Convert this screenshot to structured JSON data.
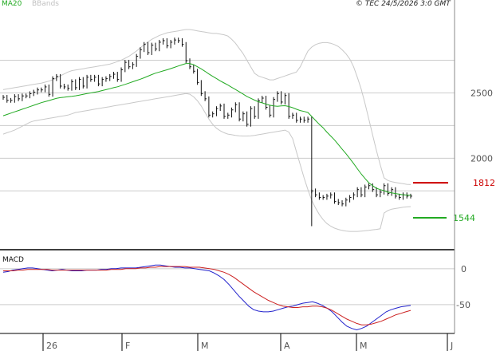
{
  "header": {
    "copyright": "© TEC 24/5/2026 3:0 GMT"
  },
  "legend": {
    "ma20": "MA20",
    "bbands": "BBands"
  },
  "macd_panel": {
    "title": "MACD"
  },
  "colors": {
    "ma20": "#22aa22",
    "bbands": "#c8c8c8",
    "price": "#111111",
    "resistance": "#cc0000",
    "support": "#22aa22",
    "macd": "#2222cc",
    "signal": "#cc2222",
    "grid": "#cccccc"
  },
  "chart_data": [
    {
      "type": "ohlc",
      "x_ticks": [
        "26",
        "F",
        "M",
        "A",
        "M",
        "J"
      ],
      "y_ticks": [
        "2500",
        "2000"
      ],
      "ylim": [
        1300,
        3150
      ],
      "levels": [
        {
          "name": "resistance",
          "value": 1812,
          "label": "1812",
          "color": "#cc0000"
        },
        {
          "name": "support",
          "value": 1544,
          "label": "1544",
          "color": "#22aa22"
        }
      ],
      "series": [
        {
          "name": "price",
          "values": [
            2466,
            2443,
            2443,
            2472,
            2455,
            2477,
            2477,
            2494,
            2506,
            2523,
            2523,
            2546,
            2489,
            2609,
            2626,
            2552,
            2546,
            2535,
            2586,
            2540,
            2603,
            2552,
            2620,
            2603,
            2620,
            2569,
            2603,
            2609,
            2626,
            2643,
            2603,
            2677,
            2734,
            2700,
            2717,
            2780,
            2831,
            2871,
            2808,
            2866,
            2837,
            2888,
            2900,
            2860,
            2888,
            2905,
            2900,
            2871,
            2746,
            2700,
            2666,
            2580,
            2495,
            2455,
            2330,
            2340,
            2380,
            2400,
            2320,
            2330,
            2370,
            2410,
            2300,
            2340,
            2260,
            2380,
            2320,
            2440,
            2460,
            2390,
            2330,
            2450,
            2495,
            2430,
            2480,
            2320,
            2330,
            2290,
            2300,
            2290,
            2300,
            1750,
            1720,
            1700,
            1700,
            1710,
            1720,
            1670,
            1660,
            1650,
            1680,
            1700,
            1720,
            1760,
            1720,
            1780,
            1790,
            1760,
            1720,
            1740,
            1790,
            1730,
            1760,
            1710,
            1700,
            1720,
            1710,
            1710
          ]
        },
        {
          "name": "MA20",
          "values": [
            2325,
            2335,
            2345,
            2355,
            2365,
            2375,
            2385,
            2395,
            2405,
            2415,
            2425,
            2433,
            2441,
            2450,
            2458,
            2464,
            2467,
            2471,
            2474,
            2478,
            2483,
            2489,
            2495,
            2500,
            2505,
            2511,
            2518,
            2525,
            2532,
            2540,
            2547,
            2556,
            2565,
            2575,
            2585,
            2595,
            2605,
            2616,
            2628,
            2640,
            2651,
            2660,
            2668,
            2677,
            2686,
            2696,
            2706,
            2716,
            2725,
            2725,
            2716,
            2700,
            2684,
            2665,
            2645,
            2627,
            2610,
            2592,
            2576,
            2560,
            2543,
            2526,
            2508,
            2491,
            2473,
            2459,
            2445,
            2432,
            2424,
            2414,
            2406,
            2401,
            2398,
            2400,
            2402,
            2396,
            2387,
            2375,
            2365,
            2358,
            2350,
            2320,
            2290,
            2260,
            2233,
            2200,
            2170,
            2140,
            2105,
            2070,
            2035,
            1998,
            1960,
            1920,
            1880,
            1845,
            1812,
            1790,
            1770,
            1760,
            1752,
            1740,
            1735,
            1730,
            1725,
            1720,
            1718,
            1716
          ]
        },
        {
          "name": "BB upper",
          "values": [
            2525,
            2530,
            2535,
            2540,
            2545,
            2550,
            2555,
            2560,
            2565,
            2570,
            2575,
            2582,
            2590,
            2600,
            2615,
            2630,
            2645,
            2660,
            2670,
            2675,
            2680,
            2685,
            2690,
            2695,
            2700,
            2705,
            2710,
            2715,
            2720,
            2730,
            2740,
            2750,
            2765,
            2780,
            2800,
            2820,
            2845,
            2870,
            2890,
            2910,
            2925,
            2940,
            2950,
            2960,
            2965,
            2970,
            2975,
            2980,
            2985,
            2985,
            2980,
            2975,
            2970,
            2965,
            2960,
            2955,
            2955,
            2950,
            2945,
            2935,
            2910,
            2880,
            2840,
            2800,
            2750,
            2700,
            2650,
            2630,
            2620,
            2610,
            2600,
            2600,
            2610,
            2620,
            2630,
            2640,
            2650,
            2660,
            2700,
            2760,
            2820,
            2850,
            2870,
            2880,
            2885,
            2885,
            2880,
            2870,
            2855,
            2830,
            2800,
            2760,
            2700,
            2620,
            2530,
            2420,
            2300,
            2180,
            2060,
            1950,
            1850,
            1830,
            1820,
            1815,
            1810,
            1805,
            1800,
            1798
          ]
        },
        {
          "name": "BB lower",
          "values": [
            2185,
            2195,
            2205,
            2215,
            2230,
            2245,
            2260,
            2275,
            2285,
            2290,
            2295,
            2300,
            2305,
            2310,
            2315,
            2320,
            2325,
            2330,
            2340,
            2350,
            2355,
            2360,
            2365,
            2370,
            2375,
            2380,
            2385,
            2390,
            2395,
            2400,
            2405,
            2410,
            2415,
            2420,
            2425,
            2430,
            2435,
            2440,
            2445,
            2450,
            2455,
            2460,
            2465,
            2470,
            2475,
            2480,
            2485,
            2490,
            2495,
            2490,
            2470,
            2440,
            2400,
            2350,
            2300,
            2260,
            2230,
            2210,
            2195,
            2185,
            2180,
            2175,
            2172,
            2170,
            2170,
            2172,
            2175,
            2180,
            2185,
            2190,
            2195,
            2200,
            2205,
            2210,
            2215,
            2200,
            2150,
            2050,
            1950,
            1850,
            1760,
            1680,
            1620,
            1570,
            1530,
            1500,
            1480,
            1465,
            1455,
            1448,
            1443,
            1440,
            1440,
            1440,
            1442,
            1445,
            1448,
            1452,
            1455,
            1460,
            1580,
            1600,
            1610,
            1615,
            1620,
            1625,
            1628,
            1630
          ]
        }
      ]
    },
    {
      "type": "line",
      "title": "MACD",
      "y_ticks": [
        "0",
        "-50"
      ],
      "ylim": [
        -90,
        22
      ],
      "series": [
        {
          "name": "MACD",
          "values": [
            -5,
            -4,
            -2,
            -1,
            0,
            1,
            1,
            0,
            -1,
            -2,
            -3,
            -2,
            -1,
            -2,
            -3,
            -3,
            -3,
            -2,
            -2,
            -2,
            -1,
            -1,
            0,
            0,
            1,
            1,
            1,
            1,
            2,
            3,
            4,
            5,
            5,
            4,
            3,
            2,
            2,
            1,
            1,
            0,
            -1,
            -2,
            -3,
            -6,
            -10,
            -15,
            -22,
            -30,
            -38,
            -45,
            -52,
            -57,
            -59,
            -60,
            -60,
            -59,
            -57,
            -55,
            -53,
            -52,
            -50,
            -48,
            -47,
            -46,
            -48,
            -51,
            -55,
            -60,
            -67,
            -74,
            -80,
            -83,
            -85,
            -83,
            -80,
            -75,
            -70,
            -65,
            -60,
            -57,
            -55,
            -53,
            -52,
            -51
          ]
        },
        {
          "name": "Signal",
          "values": [
            -3,
            -3,
            -3,
            -2,
            -2,
            -1,
            -1,
            -1,
            -1,
            -1,
            -2,
            -2,
            -2,
            -2,
            -2,
            -2,
            -2,
            -2,
            -2,
            -2,
            -2,
            -2,
            -1,
            -1,
            -1,
            0,
            0,
            0,
            1,
            1,
            2,
            2,
            3,
            3,
            3,
            3,
            3,
            3,
            2,
            2,
            2,
            1,
            0,
            -1,
            -3,
            -5,
            -8,
            -12,
            -17,
            -22,
            -27,
            -32,
            -36,
            -40,
            -44,
            -47,
            -50,
            -52,
            -53,
            -54,
            -54,
            -53,
            -53,
            -52,
            -52,
            -53,
            -55,
            -58,
            -62,
            -66,
            -70,
            -73,
            -76,
            -78,
            -78,
            -77,
            -75,
            -73,
            -70,
            -67,
            -64,
            -62,
            -60,
            -58
          ]
        }
      ]
    }
  ]
}
